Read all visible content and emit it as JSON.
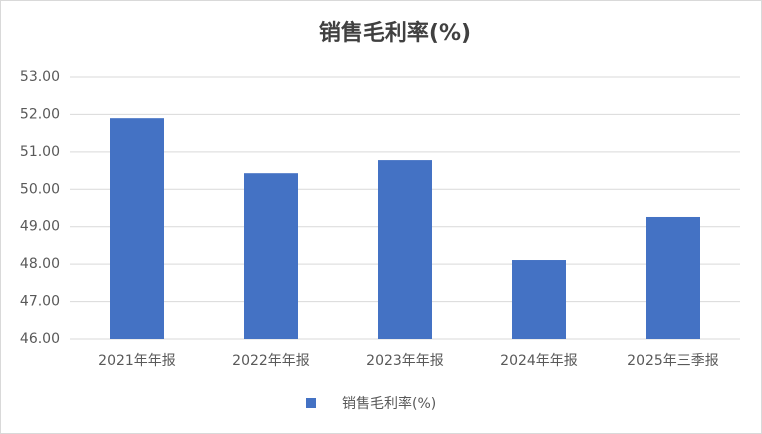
{
  "chart_data": {
    "type": "bar",
    "title": "销售毛利率(%)",
    "categories": [
      "2021年年报",
      "2022年年报",
      "2023年年报",
      "2024年年报",
      "2025年三季报"
    ],
    "series": [
      {
        "name": "销售毛利率(%)",
        "color": "#4472c4",
        "values": [
          51.9,
          50.43,
          50.78,
          48.11,
          49.26
        ]
      }
    ],
    "ylim": [
      46,
      53
    ],
    "yticks": [
      {
        "value": 46,
        "label": "46.00"
      },
      {
        "value": 47,
        "label": "47.00"
      },
      {
        "value": 48,
        "label": "48.00"
      },
      {
        "value": 49,
        "label": "49.00"
      },
      {
        "value": 50,
        "label": "50.00"
      },
      {
        "value": 51,
        "label": "51.00"
      },
      {
        "value": 52,
        "label": "52.00"
      },
      {
        "value": 53,
        "label": "53.00"
      }
    ],
    "grid": true,
    "legend": "bottom"
  }
}
